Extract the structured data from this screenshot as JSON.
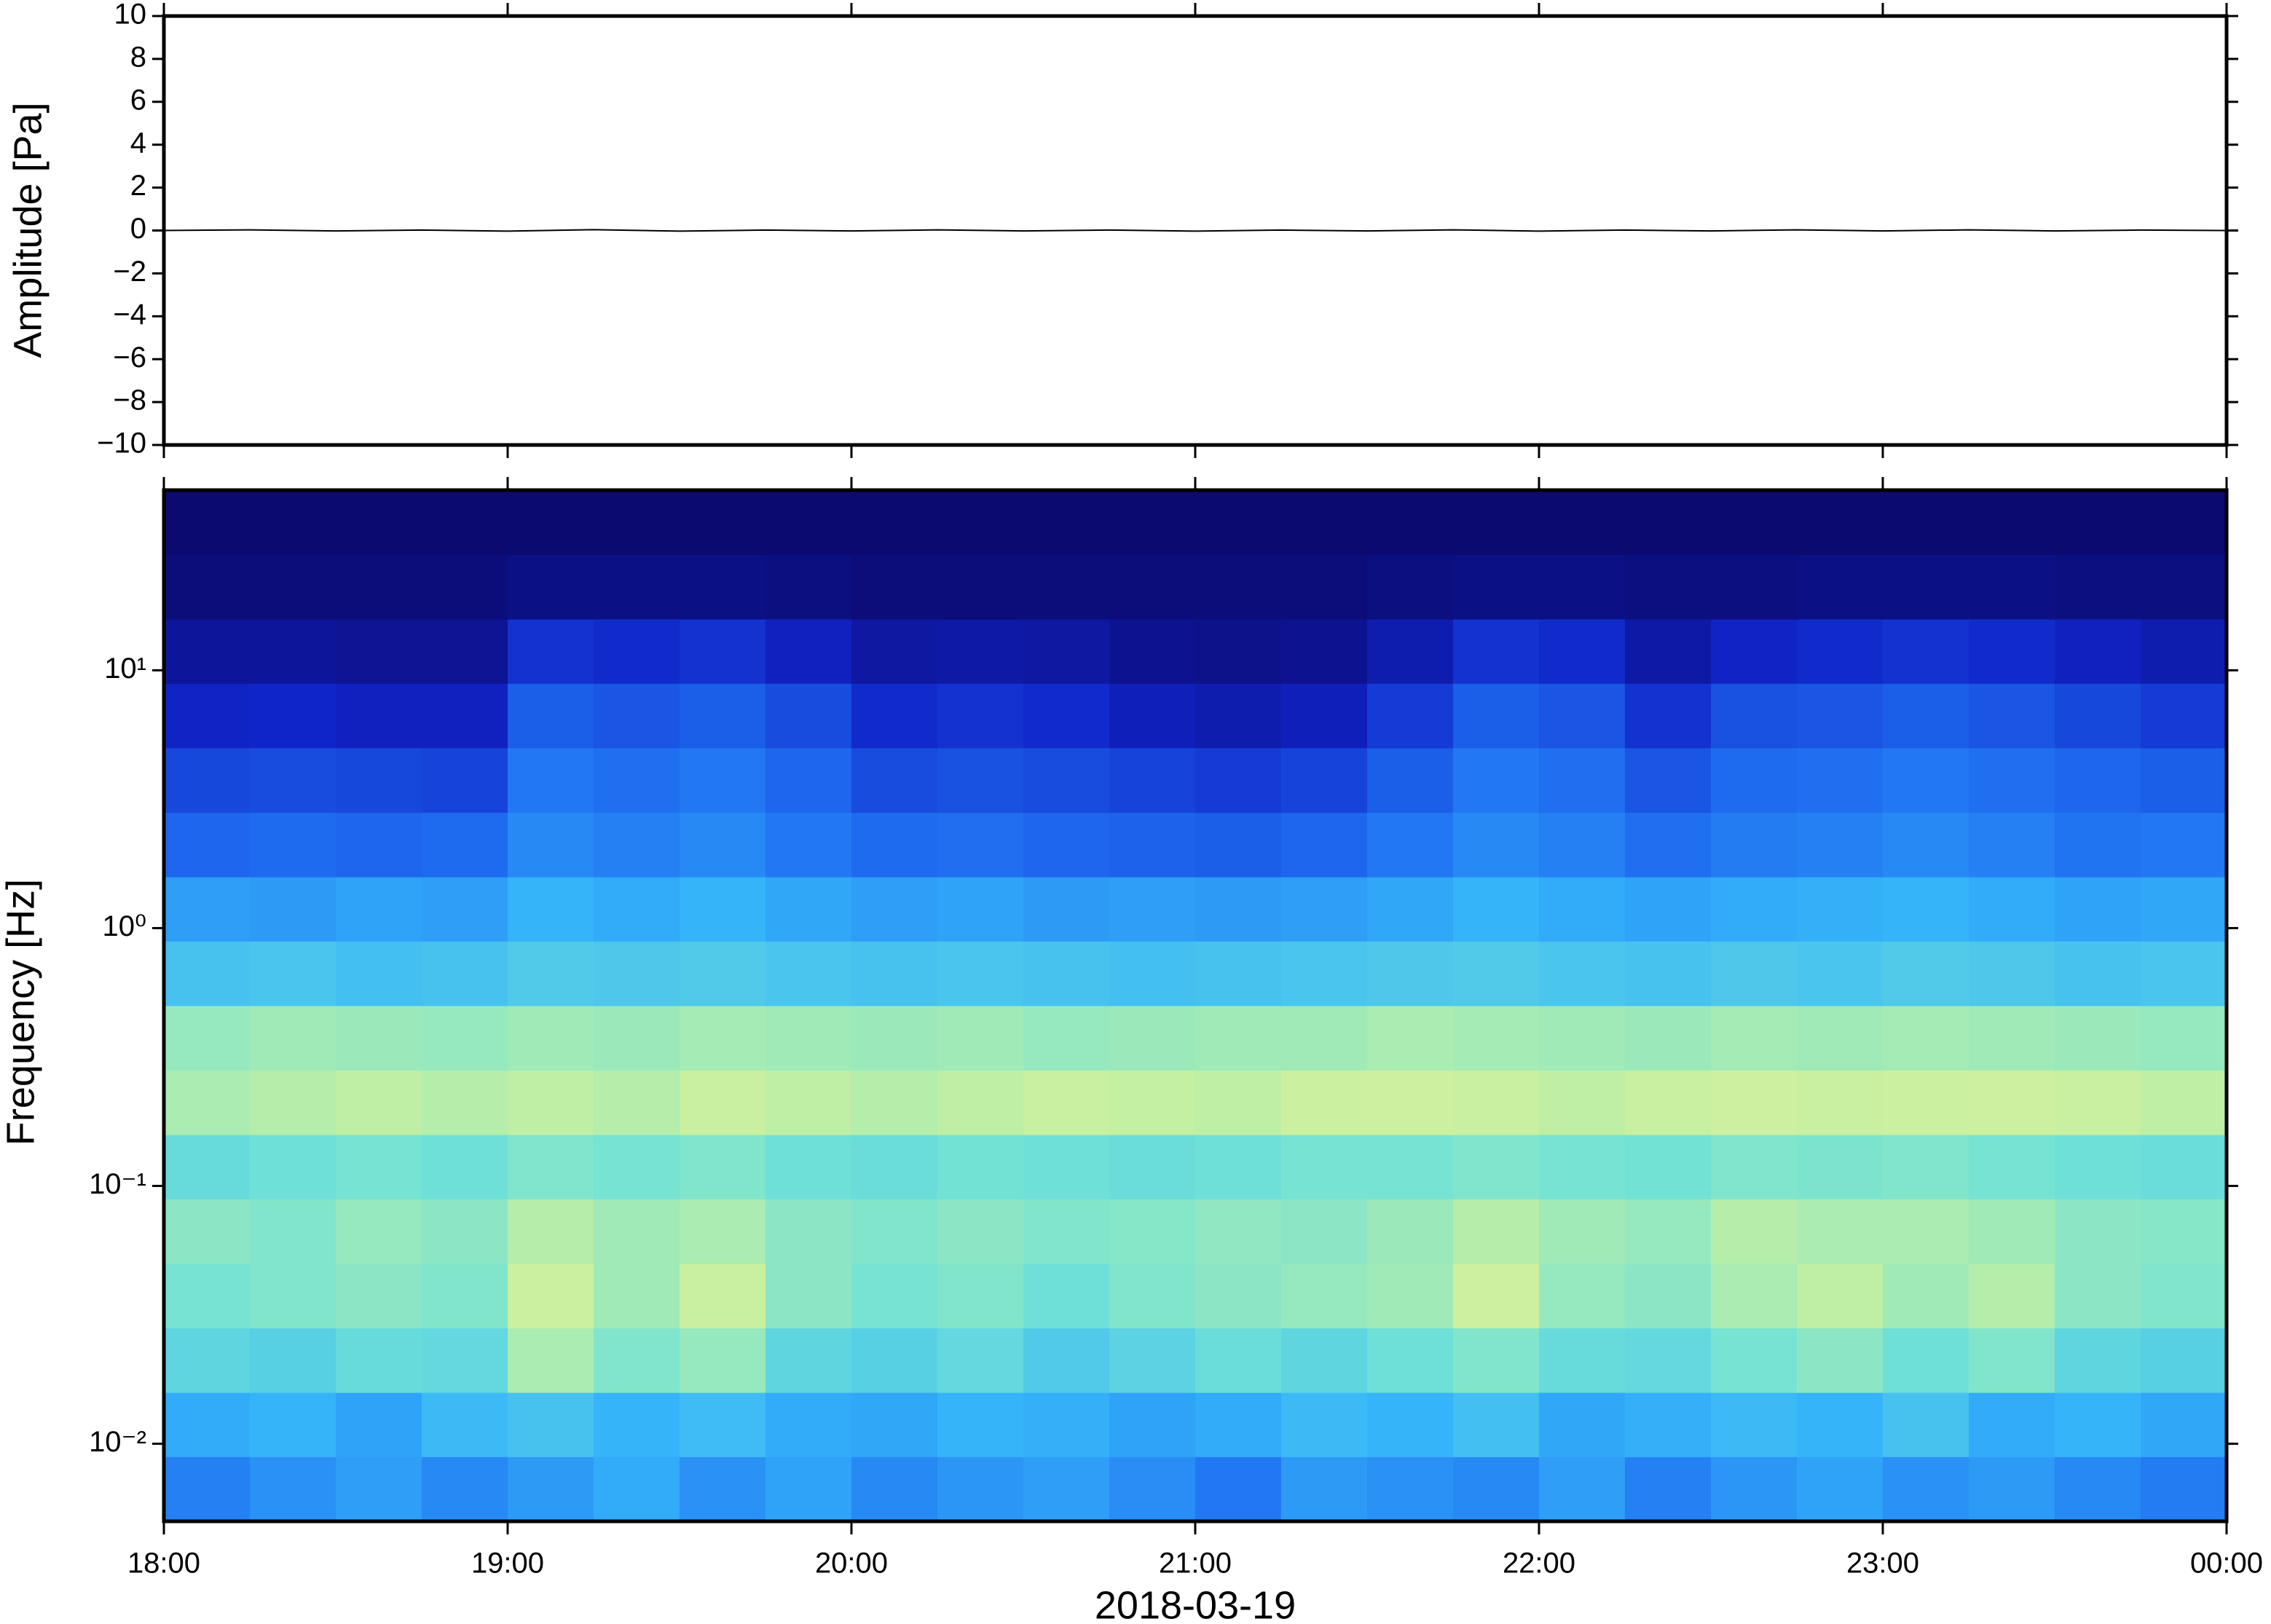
{
  "chart_data": [
    {
      "type": "line",
      "ylabel": "Amplitude [Pa]",
      "color": "#000000",
      "x": [
        18,
        18.25,
        18.5,
        18.75,
        19,
        19.25,
        19.5,
        19.75,
        20,
        20.25,
        20.5,
        20.75,
        21,
        21.25,
        21.5,
        21.75,
        22,
        22.25,
        22.5,
        22.75,
        23,
        23.25,
        23.5,
        23.75,
        24
      ],
      "values": [
        0,
        0.03,
        -0.02,
        0.02,
        -0.03,
        0.04,
        -0.03,
        0.02,
        -0.02,
        0.03,
        -0.02,
        0.02,
        -0.03,
        0.02,
        -0.02,
        0.03,
        -0.03,
        0.02,
        -0.02,
        0.03,
        -0.02,
        0.03,
        -0.02,
        0.02,
        0
      ],
      "xlim": [
        18,
        24
      ],
      "xticks": [
        18,
        19,
        20,
        21,
        22,
        23,
        24
      ],
      "ylim": [
        -10,
        10
      ],
      "yticks": [
        {
          "value": -10,
          "label": "−10"
        },
        {
          "value": -8,
          "label": "−8"
        },
        {
          "value": -6,
          "label": "−6"
        },
        {
          "value": -4,
          "label": "−4"
        },
        {
          "value": -2,
          "label": "−2"
        },
        0,
        2,
        4,
        6,
        8,
        10
      ]
    },
    {
      "type": "heatmap",
      "ylabel": "Frequency [Hz]",
      "xlabel": "2018-03-19",
      "log_y": true,
      "xlim": [
        18,
        24
      ],
      "xticks": [
        {
          "value": 18,
          "label": "18:00"
        },
        {
          "value": 19,
          "label": "19:00"
        },
        {
          "value": 20,
          "label": "20:00"
        },
        {
          "value": 21,
          "label": "21:00"
        },
        {
          "value": 22,
          "label": "22:00"
        },
        {
          "value": 23,
          "label": "23:00"
        },
        {
          "value": 24,
          "label": "00:00"
        }
      ],
      "ylim": [
        0.005,
        50
      ],
      "yticks": [
        {
          "value": 0.01,
          "label": "10⁻²"
        },
        {
          "value": 0.1,
          "label": "10⁻¹"
        },
        {
          "value": 1,
          "label": "10⁰"
        },
        {
          "value": 10,
          "label": "10¹"
        }
      ],
      "colormap": [
        "#0b0a70",
        "#1024c8",
        "#1e6cf0",
        "#35b4fa",
        "#70e2d6",
        "#c6f0a0",
        "#f4eea0"
      ],
      "x_edges": [
        18,
        18.25,
        18.5,
        18.75,
        19,
        19.25,
        19.5,
        19.75,
        20,
        20.25,
        20.5,
        20.75,
        21,
        21.25,
        21.5,
        21.75,
        22,
        22.25,
        22.5,
        22.75,
        23,
        23.25,
        23.5,
        23.75,
        24
      ],
      "y_edges": [
        0.005,
        0.0089,
        0.0158,
        0.0281,
        0.05,
        0.089,
        0.158,
        0.281,
        0.5,
        0.89,
        1.58,
        2.81,
        5,
        8.9,
        15.8,
        28.1,
        50
      ],
      "z": [
        [
          0.38,
          0.42,
          0.45,
          0.4,
          0.44,
          0.48,
          0.42,
          0.46,
          0.4,
          0.43,
          0.45,
          0.41,
          0.36,
          0.44,
          0.42,
          0.4,
          0.45,
          0.38,
          0.43,
          0.46,
          0.42,
          0.44,
          0.4,
          0.37
        ],
        [
          0.48,
          0.5,
          0.46,
          0.52,
          0.55,
          0.5,
          0.53,
          0.48,
          0.47,
          0.5,
          0.49,
          0.46,
          0.48,
          0.52,
          0.5,
          0.54,
          0.47,
          0.49,
          0.52,
          0.5,
          0.55,
          0.48,
          0.5,
          0.47
        ],
        [
          0.62,
          0.6,
          0.64,
          0.63,
          0.78,
          0.7,
          0.74,
          0.62,
          0.6,
          0.63,
          0.58,
          0.61,
          0.65,
          0.62,
          0.66,
          0.7,
          0.64,
          0.63,
          0.68,
          0.72,
          0.66,
          0.7,
          0.62,
          0.6
        ],
        [
          0.68,
          0.7,
          0.72,
          0.7,
          0.85,
          0.76,
          0.84,
          0.72,
          0.68,
          0.7,
          0.66,
          0.7,
          0.72,
          0.74,
          0.76,
          0.86,
          0.74,
          0.72,
          0.78,
          0.82,
          0.76,
          0.8,
          0.72,
          0.7
        ],
        [
          0.72,
          0.7,
          0.74,
          0.72,
          0.8,
          0.76,
          0.78,
          0.72,
          0.7,
          0.72,
          0.7,
          0.71,
          0.73,
          0.72,
          0.75,
          0.8,
          0.76,
          0.74,
          0.8,
          0.78,
          0.78,
          0.76,
          0.72,
          0.71
        ],
        [
          0.64,
          0.66,
          0.68,
          0.66,
          0.7,
          0.68,
          0.7,
          0.66,
          0.65,
          0.67,
          0.66,
          0.65,
          0.66,
          0.68,
          0.68,
          0.7,
          0.68,
          0.67,
          0.7,
          0.69,
          0.7,
          0.68,
          0.66,
          0.65
        ],
        [
          0.78,
          0.8,
          0.82,
          0.8,
          0.82,
          0.8,
          0.84,
          0.82,
          0.8,
          0.82,
          0.84,
          0.83,
          0.82,
          0.85,
          0.86,
          0.84,
          0.82,
          0.84,
          0.86,
          0.84,
          0.85,
          0.86,
          0.84,
          0.82
        ],
        [
          0.74,
          0.76,
          0.75,
          0.74,
          0.76,
          0.75,
          0.77,
          0.76,
          0.75,
          0.76,
          0.74,
          0.75,
          0.76,
          0.76,
          0.78,
          0.77,
          0.76,
          0.75,
          0.77,
          0.76,
          0.77,
          0.76,
          0.75,
          0.74
        ],
        [
          0.55,
          0.56,
          0.54,
          0.55,
          0.58,
          0.57,
          0.58,
          0.56,
          0.55,
          0.56,
          0.55,
          0.54,
          0.55,
          0.56,
          0.57,
          0.58,
          0.56,
          0.55,
          0.57,
          0.56,
          0.58,
          0.57,
          0.55,
          0.56
        ],
        [
          0.45,
          0.44,
          0.46,
          0.45,
          0.5,
          0.48,
          0.5,
          0.47,
          0.45,
          0.46,
          0.44,
          0.45,
          0.44,
          0.45,
          0.47,
          0.5,
          0.48,
          0.46,
          0.48,
          0.49,
          0.5,
          0.48,
          0.46,
          0.47
        ],
        [
          0.32,
          0.33,
          0.32,
          0.33,
          0.4,
          0.38,
          0.4,
          0.36,
          0.33,
          0.34,
          0.32,
          0.31,
          0.3,
          0.32,
          0.36,
          0.4,
          0.38,
          0.34,
          0.37,
          0.38,
          0.4,
          0.38,
          0.35,
          0.36
        ],
        [
          0.25,
          0.26,
          0.25,
          0.24,
          0.36,
          0.34,
          0.36,
          0.32,
          0.26,
          0.27,
          0.26,
          0.24,
          0.22,
          0.24,
          0.3,
          0.36,
          0.34,
          0.28,
          0.33,
          0.34,
          0.36,
          0.34,
          0.32,
          0.3
        ],
        [
          0.16,
          0.17,
          0.15,
          0.15,
          0.3,
          0.28,
          0.3,
          0.26,
          0.18,
          0.2,
          0.18,
          0.14,
          0.12,
          0.14,
          0.22,
          0.3,
          0.28,
          0.2,
          0.27,
          0.28,
          0.3,
          0.28,
          0.25,
          0.22
        ],
        [
          0.08,
          0.08,
          0.07,
          0.07,
          0.2,
          0.18,
          0.2,
          0.15,
          0.09,
          0.1,
          0.09,
          0.06,
          0.05,
          0.06,
          0.12,
          0.2,
          0.18,
          0.1,
          0.16,
          0.18,
          0.2,
          0.18,
          0.15,
          0.12
        ],
        [
          0.02,
          0.02,
          0.02,
          0.02,
          0.04,
          0.04,
          0.04,
          0.03,
          0.02,
          0.02,
          0.02,
          0.02,
          0.02,
          0.02,
          0.03,
          0.04,
          0.04,
          0.03,
          0.03,
          0.04,
          0.04,
          0.04,
          0.03,
          0.03
        ],
        [
          0,
          0,
          0,
          0,
          0,
          0,
          0,
          0,
          0,
          0,
          0,
          0,
          0,
          0,
          0,
          0,
          0,
          0,
          0,
          0,
          0,
          0,
          0,
          0
        ]
      ]
    }
  ]
}
